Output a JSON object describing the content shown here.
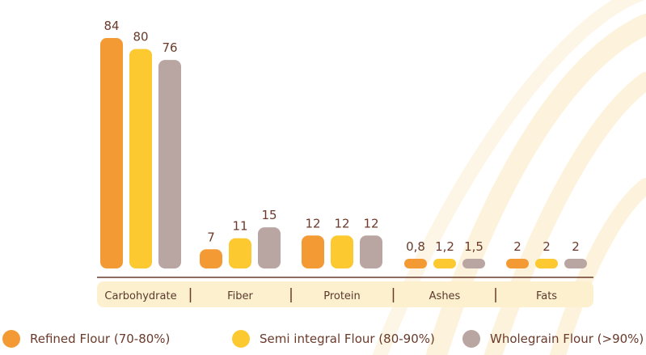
{
  "chart_data": {
    "type": "bar",
    "categories": [
      "Carbohydrate",
      "Fiber",
      "Protein",
      "Ashes",
      "Fats"
    ],
    "series": [
      {
        "name": "Refined Flour (70-80%)",
        "color": "#f39a34",
        "values": [
          84,
          7,
          12,
          0.8,
          2
        ],
        "labels": [
          "84",
          "7",
          "12",
          "0,8",
          "2"
        ]
      },
      {
        "name": "Semi integral Flour (80-90%)",
        "color": "#fcc930",
        "values": [
          80,
          11,
          12,
          1.2,
          2
        ],
        "labels": [
          "80",
          "11",
          "12",
          "1,2",
          "2"
        ]
      },
      {
        "name": "Wholegrain Flour (>90%)",
        "color": "#b9a5a1",
        "values": [
          76,
          15,
          12,
          1.5,
          2
        ],
        "labels": [
          "76",
          "15",
          "12",
          "1,5",
          "2"
        ]
      }
    ],
    "ylim": [
      0,
      84
    ],
    "grid": false,
    "legend_position": "bottom",
    "category_band_color": "#fdf0cf",
    "baseline_color": "#6b3a2a",
    "separator_color": "#6b3a2a"
  }
}
